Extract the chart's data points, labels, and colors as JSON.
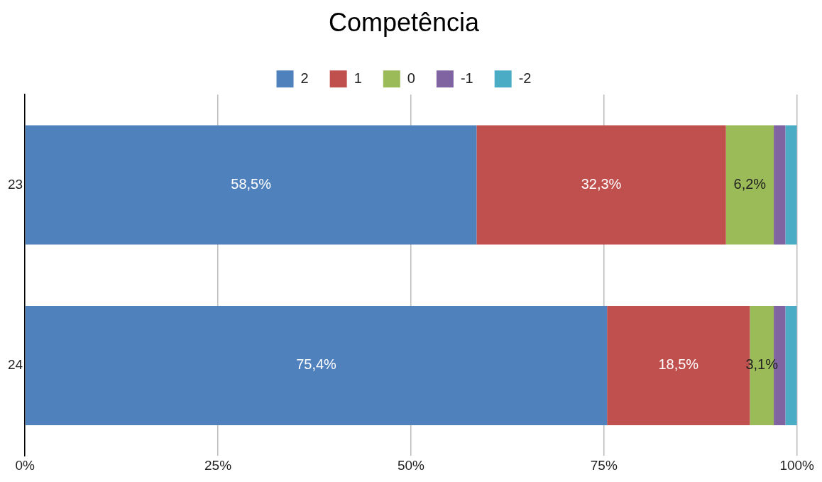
{
  "chart_data": {
    "type": "bar",
    "title": "Competência",
    "orientation": "horizontal",
    "stacked": true,
    "categories": [
      "23",
      "24"
    ],
    "series": [
      {
        "name": "2",
        "color": "#4f81bd",
        "values": [
          58.5,
          75.4
        ],
        "value_labels": [
          "58,5%",
          "75,4%"
        ]
      },
      {
        "name": "1",
        "color": "#c0504d",
        "values": [
          32.3,
          18.5
        ],
        "value_labels": [
          "32,3%",
          "18,5%"
        ]
      },
      {
        "name": "0",
        "color": "#9bbb59",
        "values": [
          6.2,
          3.1
        ],
        "value_labels": [
          "6,2%",
          "3,1%"
        ]
      },
      {
        "name": "-1",
        "color": "#8064a2",
        "values": [
          1.5,
          1.5
        ]
      },
      {
        "name": "-2",
        "color": "#4bacc6",
        "values": [
          1.5,
          1.5
        ]
      }
    ],
    "xlim": [
      0,
      100
    ],
    "xticks": [
      {
        "value": 0,
        "label": "0%"
      },
      {
        "value": 25,
        "label": "25%"
      },
      {
        "value": 50,
        "label": "50%"
      },
      {
        "value": 75,
        "label": "75%"
      },
      {
        "value": 100,
        "label": "100%"
      }
    ],
    "grid": "x",
    "legend": "top"
  }
}
